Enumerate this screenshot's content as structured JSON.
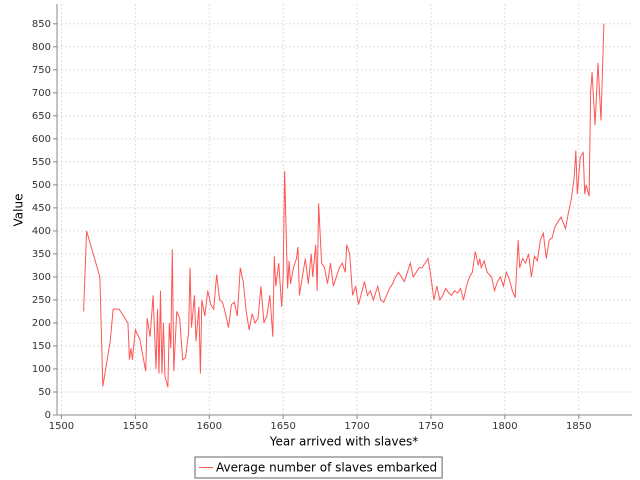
{
  "chart_data": {
    "type": "line",
    "x_label": "Year arrived with slaves*",
    "y_label": "Value",
    "x": [
      1515,
      1517,
      1526,
      1528,
      1533,
      1535,
      1539,
      1545,
      1546,
      1547,
      1548,
      1550,
      1553,
      1557,
      1558,
      1560,
      1562,
      1564,
      1565,
      1566,
      1567,
      1568,
      1569,
      1570,
      1572,
      1573,
      1574,
      1575,
      1576,
      1578,
      1580,
      1582,
      1584,
      1586,
      1587,
      1588,
      1590,
      1591,
      1593,
      1594,
      1595,
      1597,
      1599,
      1601,
      1603,
      1605,
      1607,
      1609,
      1611,
      1613,
      1615,
      1617,
      1619,
      1621,
      1623,
      1625,
      1627,
      1629,
      1631,
      1633,
      1635,
      1637,
      1639,
      1641,
      1643,
      1644,
      1645,
      1647,
      1649,
      1650,
      1651,
      1653,
      1654,
      1655,
      1657,
      1659,
      1660,
      1661,
      1663,
      1665,
      1667,
      1669,
      1670,
      1672,
      1673,
      1674,
      1676,
      1678,
      1680,
      1682,
      1684,
      1686,
      1688,
      1690,
      1692,
      1693,
      1695,
      1697,
      1699,
      1701,
      1703,
      1705,
      1707,
      1709,
      1711,
      1714,
      1716,
      1718,
      1720,
      1722,
      1724,
      1726,
      1728,
      1730,
      1732,
      1734,
      1736,
      1738,
      1740,
      1742,
      1744,
      1746,
      1748,
      1750,
      1752,
      1754,
      1756,
      1758,
      1760,
      1762,
      1764,
      1766,
      1768,
      1770,
      1772,
      1774,
      1776,
      1778,
      1780,
      1782,
      1783,
      1784,
      1786,
      1788,
      1791,
      1793,
      1795,
      1797,
      1799,
      1801,
      1803,
      1805,
      1807,
      1809,
      1810,
      1812,
      1814,
      1816,
      1818,
      1820,
      1822,
      1824,
      1826,
      1828,
      1830,
      1832,
      1834,
      1836,
      1838,
      1841,
      1843,
      1845,
      1847,
      1848,
      1849,
      1851,
      1853,
      1854,
      1855,
      1857,
      1858,
      1859,
      1861,
      1863,
      1865,
      1867
    ],
    "series": [
      {
        "name": "Average number of slaves embarked",
        "color": "#ff5555",
        "values": [
          225,
          400,
          300,
          62,
          160,
          230,
          230,
          200,
          120,
          145,
          120,
          185,
          165,
          95,
          210,
          170,
          260,
          100,
          230,
          90,
          270,
          90,
          200,
          85,
          60,
          200,
          145,
          360,
          95,
          225,
          210,
          120,
          125,
          180,
          320,
          190,
          260,
          160,
          235,
          90,
          250,
          215,
          270,
          240,
          230,
          305,
          250,
          245,
          220,
          190,
          240,
          245,
          215,
          320,
          290,
          225,
          185,
          220,
          200,
          210,
          280,
          200,
          215,
          260,
          170,
          345,
          280,
          330,
          235,
          300,
          530,
          275,
          335,
          285,
          320,
          340,
          365,
          260,
          300,
          340,
          285,
          350,
          300,
          370,
          270,
          460,
          330,
          320,
          285,
          330,
          280,
          300,
          320,
          330,
          310,
          370,
          350,
          260,
          280,
          240,
          265,
          290,
          260,
          270,
          250,
          280,
          250,
          245,
          260,
          275,
          285,
          300,
          310,
          300,
          290,
          310,
          330,
          300,
          310,
          320,
          320,
          330,
          340,
          300,
          250,
          280,
          250,
          260,
          275,
          265,
          260,
          270,
          265,
          275,
          250,
          280,
          300,
          310,
          355,
          325,
          340,
          320,
          335,
          310,
          300,
          270,
          290,
          300,
          280,
          310,
          295,
          270,
          255,
          380,
          320,
          340,
          330,
          350,
          300,
          345,
          335,
          380,
          395,
          340,
          380,
          385,
          410,
          420,
          430,
          405,
          440,
          470,
          520,
          575,
          480,
          560,
          570,
          480,
          500,
          475,
          700,
          745,
          630,
          765,
          640,
          850
        ]
      }
    ],
    "xlim": [
      1497,
      1886
    ],
    "xticks": [
      1500,
      1550,
      1600,
      1650,
      1700,
      1750,
      1800,
      1850
    ],
    "ylim": [
      0,
      893
    ],
    "yticks": [
      0,
      50,
      100,
      150,
      200,
      250,
      300,
      350,
      400,
      450,
      500,
      550,
      600,
      650,
      700,
      750,
      800,
      850
    ],
    "grid": true,
    "legend": "bottom"
  }
}
